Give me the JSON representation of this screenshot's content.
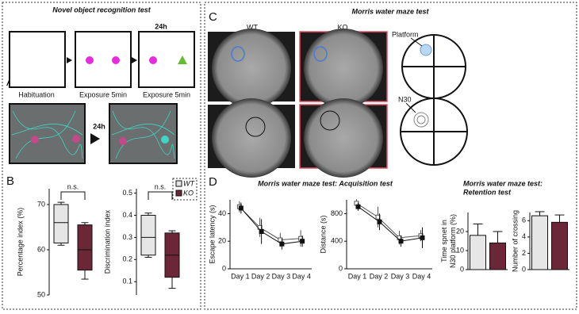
{
  "panel_labels": [
    "A",
    "B",
    "C",
    "D"
  ],
  "nor": {
    "title": "Novel object recognition test",
    "delay": "24h",
    "stages": [
      "Habituation",
      "Exposure 5min",
      "Exposure 5min"
    ]
  },
  "mwm": {
    "title": "Morris water maze test",
    "groups": [
      "WT",
      "KO"
    ],
    "platform": "Platform",
    "n30": "N30"
  },
  "acquisition_title": "Morris water maze test: Acquisition test",
  "retention_title": [
    "Morris water maze test:",
    "Retention test"
  ],
  "legend": [
    {
      "name": "WT",
      "color": "#e6e6e6"
    },
    {
      "name": "KO",
      "color": "#6b2737"
    }
  ],
  "chart_data": [
    {
      "type": "box",
      "ylabel": [
        "Percentage index (%)"
      ],
      "ylim": [
        50,
        73.5
      ],
      "yticks": [
        50,
        60,
        70
      ],
      "annotation": "n.s.",
      "groups": [
        {
          "color": "#e6e6e6",
          "stats": [
            61,
            61.5,
            66,
            70,
            70.5
          ]
        },
        {
          "color": "#6b2737",
          "stats": [
            53.5,
            55.5,
            60,
            65.5,
            66
          ]
        }
      ]
    },
    {
      "type": "box",
      "ylabel": [
        "Discrimination index"
      ],
      "ylim": [
        0.04,
        0.52
      ],
      "yticks": [
        0.1,
        0.2,
        0.3,
        0.4,
        0.5
      ],
      "annotation": "n.s.",
      "groups": [
        {
          "color": "#e6e6e6",
          "stats": [
            0.21,
            0.22,
            0.3,
            0.4,
            0.41
          ]
        },
        {
          "color": "#6b2737",
          "stats": [
            0.07,
            0.12,
            0.22,
            0.32,
            0.33
          ]
        }
      ]
    },
    {
      "type": "line",
      "ylabel": [
        "Escape latency (s)"
      ],
      "categories": [
        "Day 1",
        "Day 2",
        "Day 3",
        "Day 4"
      ],
      "ylim": [
        0,
        50
      ],
      "yticks": [
        0,
        20,
        40
      ],
      "series": [
        {
          "color": "#555555",
          "values": [
            45,
            30,
            21,
            22
          ],
          "errors": [
            4,
            7,
            5,
            6
          ]
        },
        {
          "color": "#111111",
          "values": [
            44,
            27,
            18,
            20
          ],
          "errors": [
            4,
            9,
            4,
            4
          ]
        }
      ]
    },
    {
      "type": "line",
      "ylabel": [
        "Distance (s)"
      ],
      "categories": [
        "Day 1",
        "Day 2",
        "Day 3",
        "Day 4"
      ],
      "ylim": [
        0,
        1000
      ],
      "yticks": [
        0,
        400,
        800
      ],
      "series": [
        {
          "color": "#555555",
          "values": [
            950,
            750,
            450,
            480
          ],
          "errors": [
            60,
            150,
            100,
            80
          ]
        },
        {
          "color": "#111111",
          "values": [
            900,
            680,
            400,
            450
          ],
          "errors": [
            60,
            120,
            80,
            150
          ]
        }
      ]
    },
    {
      "type": "bar",
      "ylabel": [
        "Time spnet in",
        "N30 platform (%)"
      ],
      "ylim": [
        0,
        30
      ],
      "yticks": [
        0,
        10,
        20
      ],
      "values": [
        18,
        14
      ],
      "errors": [
        6,
        6
      ],
      "colors": [
        "#e6e6e6",
        "#6b2737"
      ]
    },
    {
      "type": "bar",
      "ylabel": [
        "Number of crossing"
      ],
      "ylim": [
        0,
        7
      ],
      "yticks": [
        0,
        2,
        4,
        6
      ],
      "values": [
        6.6,
        5.8
      ],
      "errors": [
        0.5,
        0.9
      ],
      "colors": [
        "#e6e6e6",
        "#6b2737"
      ]
    }
  ]
}
